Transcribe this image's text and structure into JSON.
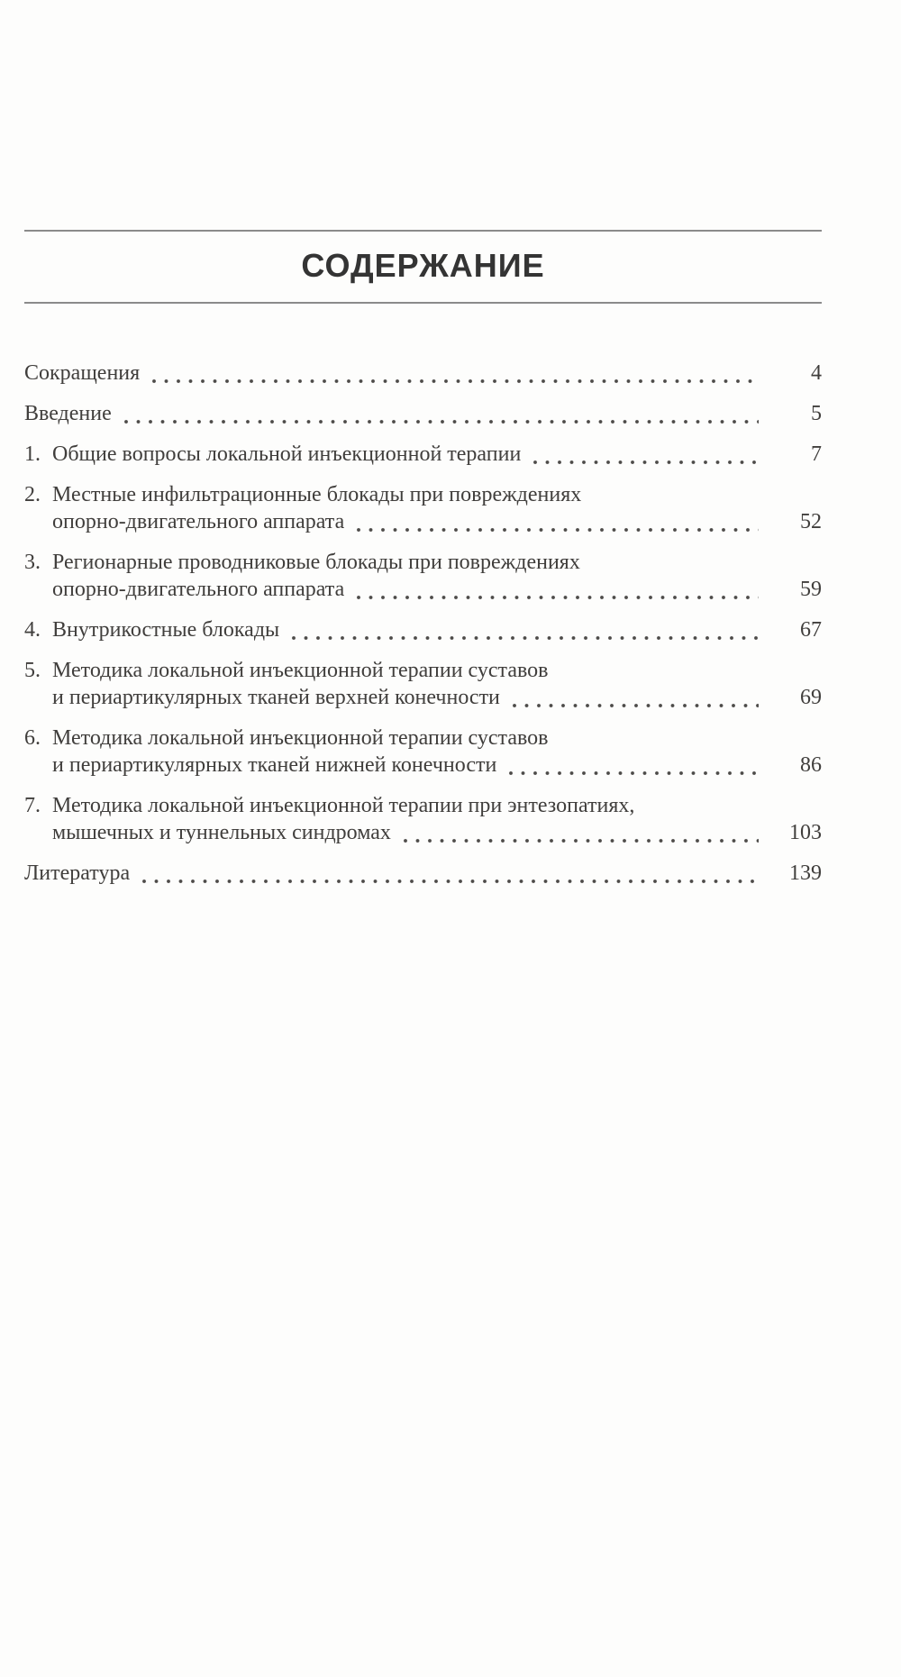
{
  "page": {
    "title": "СОДЕРЖАНИЕ",
    "colors": {
      "text": "#403e3c",
      "title": "#343434",
      "rule": "#8b8b8b",
      "dots": "#4d4b49",
      "paper": "#fdfdfc"
    },
    "toc": {
      "entries": [
        {
          "number": "",
          "lines": [
            "Сокращения"
          ],
          "page": "4"
        },
        {
          "number": "",
          "lines": [
            "Введение"
          ],
          "page": "5"
        },
        {
          "number": "1.",
          "lines": [
            "Общие вопросы локальной инъекционной терапии"
          ],
          "page": "7"
        },
        {
          "number": "2.",
          "lines": [
            "Местные инфильтрационные блокады при повреждениях",
            "опорно-двигательного аппарата"
          ],
          "page": "52"
        },
        {
          "number": "3.",
          "lines": [
            "Регионарные проводниковые блокады при повреждениях",
            "опорно-двигательного аппарата"
          ],
          "page": "59"
        },
        {
          "number": "4.",
          "lines": [
            "Внутрикостные блокады"
          ],
          "page": "67"
        },
        {
          "number": "5.",
          "lines": [
            "Методика локальной инъекционной терапии суставов",
            "и периартикулярных тканей верхней конечности"
          ],
          "page": "69"
        },
        {
          "number": "6.",
          "lines": [
            "Методика локальной инъекционной терапии суставов",
            "и периартикулярных тканей нижней конечности"
          ],
          "page": "86"
        },
        {
          "number": "7.",
          "lines": [
            "Методика локальной инъекционной терапии при энтезопатиях,",
            "мышечных и туннельных синдромах"
          ],
          "page": "103"
        },
        {
          "number": "",
          "lines": [
            "Литература"
          ],
          "page": "139"
        }
      ]
    }
  }
}
